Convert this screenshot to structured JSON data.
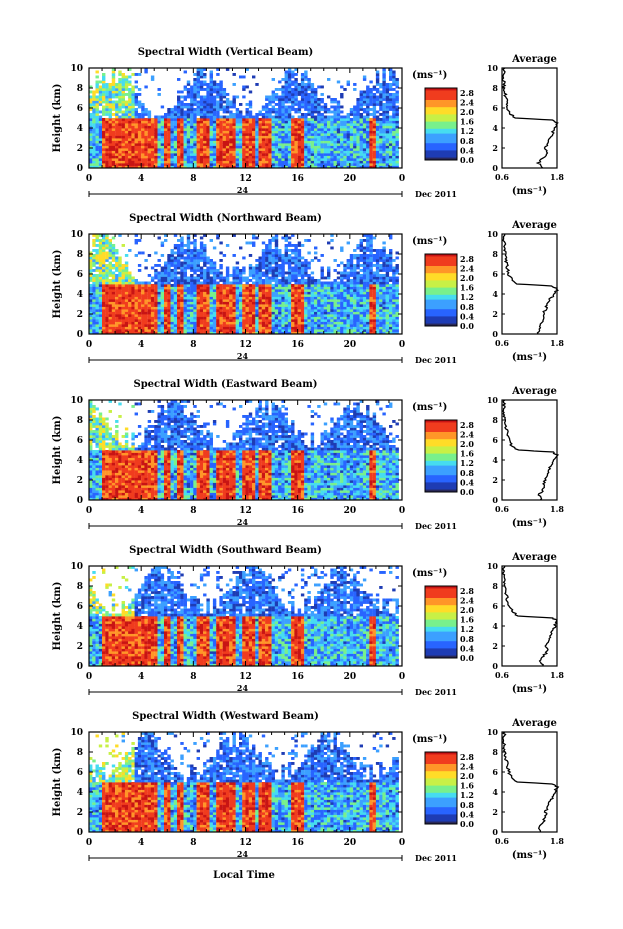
{
  "figure": {
    "xaxis_title": "Local Time",
    "ylabel": "Height (km)",
    "date_label": "Dec 2011",
    "day_label": "24",
    "colorbar_unit": "(ms⁻¹)",
    "colorbar_ticks": [
      "2.8",
      "2.4",
      "2.0",
      "1.6",
      "1.2",
      "0.8",
      "0.4",
      "0.0"
    ],
    "avg_title": "Average",
    "avg_xlabel": "(ms⁻¹)",
    "avg_xticks": [
      "0.6",
      "1.8"
    ],
    "xticks": [
      "0",
      "4",
      "8",
      "12",
      "16",
      "20",
      "0"
    ],
    "yticks": [
      "0",
      "2",
      "4",
      "6",
      "8",
      "10"
    ],
    "colormap": [
      "#28285a",
      "#1e3cb4",
      "#2864ff",
      "#3ca0ff",
      "#46dcf0",
      "#78f08c",
      "#c8f046",
      "#ffdc28",
      "#ff9628",
      "#f03c1e",
      "#c81414"
    ]
  },
  "chart_data": [
    {
      "type": "heatmap",
      "title": "Spectral Width (Vertical Beam)",
      "xlabel": "Local Time",
      "ylabel": "Height (km)",
      "xlim": [
        0,
        24
      ],
      "ylim": [
        0,
        10
      ],
      "colorbar_range": [
        0.0,
        3.0
      ],
      "average_profile": {
        "height": [
          0,
          0.5,
          1,
          1.5,
          2,
          2.5,
          3,
          3.5,
          4,
          4.5,
          4.8,
          5,
          5.5,
          6,
          6.5,
          7,
          7.5,
          8,
          8.5,
          9,
          9.5,
          10
        ],
        "value": [
          1.5,
          1.4,
          1.5,
          1.6,
          1.55,
          1.6,
          1.65,
          1.7,
          1.75,
          1.8,
          1.7,
          0.9,
          0.75,
          0.7,
          0.72,
          0.68,
          0.66,
          0.64,
          0.65,
          0.63,
          0.64,
          0.66
        ]
      }
    },
    {
      "type": "heatmap",
      "title": "Spectral Width (Northward Beam)",
      "xlabel": "Local Time",
      "ylabel": "Height (km)",
      "xlim": [
        0,
        24
      ],
      "ylim": [
        0,
        10
      ],
      "colorbar_range": [
        0.0,
        3.0
      ],
      "average_profile": {
        "height": [
          0,
          0.5,
          1,
          1.5,
          2,
          2.5,
          3,
          3.5,
          4,
          4.5,
          4.8,
          5,
          5.5,
          6,
          6.5,
          7,
          7.5,
          8,
          8.5,
          9,
          9.5,
          10
        ],
        "value": [
          1.4,
          1.4,
          1.45,
          1.5,
          1.5,
          1.55,
          1.6,
          1.65,
          1.75,
          1.8,
          1.7,
          0.95,
          0.8,
          0.74,
          0.72,
          0.7,
          0.68,
          0.67,
          0.66,
          0.65,
          0.64,
          0.66
        ]
      }
    },
    {
      "type": "heatmap",
      "title": "Spectral Width (Eastward Beam)",
      "xlabel": "Local Time",
      "ylabel": "Height (km)",
      "xlim": [
        0,
        24
      ],
      "ylim": [
        0,
        10
      ],
      "colorbar_range": [
        0.0,
        3.0
      ],
      "average_profile": {
        "height": [
          0,
          0.5,
          1,
          1.5,
          2,
          2.5,
          3,
          3.5,
          4,
          4.5,
          4.8,
          5,
          5.5,
          6,
          6.5,
          7,
          7.5,
          8,
          8.5,
          9,
          9.5,
          10
        ],
        "value": [
          1.45,
          1.4,
          1.5,
          1.5,
          1.55,
          1.6,
          1.6,
          1.7,
          1.75,
          1.8,
          1.7,
          0.95,
          0.8,
          0.75,
          0.72,
          0.7,
          0.68,
          0.66,
          0.65,
          0.64,
          0.65,
          0.66
        ]
      }
    },
    {
      "type": "heatmap",
      "title": "Spectral Width (Southward Beam)",
      "xlabel": "Local Time",
      "ylabel": "Height (km)",
      "xlim": [
        0,
        24
      ],
      "ylim": [
        0,
        10
      ],
      "colorbar_range": [
        0.0,
        3.0
      ],
      "average_profile": {
        "height": [
          0,
          0.5,
          1,
          1.5,
          2,
          2.5,
          3,
          3.5,
          4,
          4.5,
          4.8,
          5,
          5.5,
          6,
          6.5,
          7,
          7.5,
          8,
          8.5,
          9,
          9.5,
          10
        ],
        "value": [
          1.5,
          1.45,
          1.5,
          1.6,
          1.55,
          1.6,
          1.65,
          1.7,
          1.75,
          1.8,
          1.7,
          0.95,
          0.82,
          0.76,
          0.72,
          0.7,
          0.68,
          0.65,
          0.66,
          0.63,
          0.64,
          0.66
        ]
      }
    },
    {
      "type": "heatmap",
      "title": "Spectral Width (Westward Beam)",
      "xlabel": "Local Time",
      "ylabel": "Height (km)",
      "xlim": [
        0,
        24
      ],
      "ylim": [
        0,
        10
      ],
      "colorbar_range": [
        0.0,
        3.0
      ],
      "average_profile": {
        "height": [
          0,
          0.5,
          1,
          1.5,
          2,
          2.5,
          3,
          3.5,
          4,
          4.5,
          4.8,
          5,
          5.5,
          6,
          6.5,
          7,
          7.5,
          8,
          8.5,
          9,
          9.5,
          10
        ],
        "value": [
          1.45,
          1.4,
          1.5,
          1.55,
          1.55,
          1.6,
          1.65,
          1.7,
          1.75,
          1.8,
          1.7,
          0.95,
          0.8,
          0.75,
          0.72,
          0.7,
          0.68,
          0.66,
          0.65,
          0.64,
          0.64,
          0.66
        ]
      }
    }
  ]
}
